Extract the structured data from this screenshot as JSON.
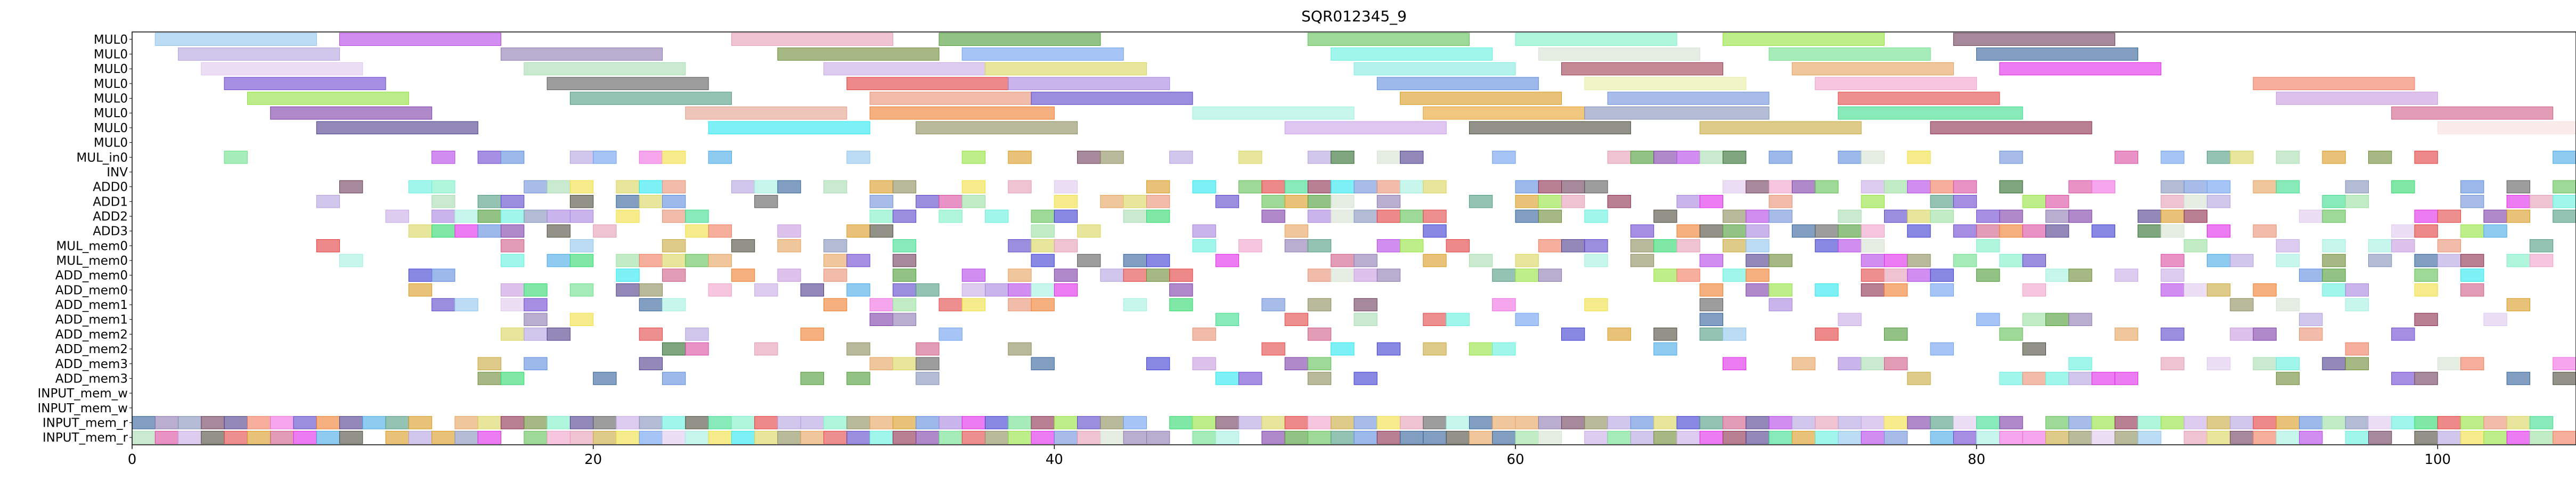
{
  "chart_data": {
    "type": "gantt",
    "title": "SQR012345_9",
    "xlim": [
      0,
      106
    ],
    "xticks": [
      0,
      20,
      40,
      60,
      80,
      100
    ],
    "rows": [
      "MUL0",
      "MUL0",
      "MUL0",
      "MUL0",
      "MUL0",
      "MUL0",
      "MUL0",
      "MUL0",
      "MUL_in0",
      "INV",
      "ADD0",
      "ADD1",
      "ADD2",
      "ADD3",
      "MUL_mem0",
      "MUL_mem0",
      "ADD_mem0",
      "ADD_mem0",
      "ADD_mem1",
      "ADD_mem1",
      "ADD_mem2",
      "ADD_mem2",
      "ADD_mem3",
      "ADD_mem3",
      "INPUT_mem_w",
      "INPUT_mem_w",
      "INPUT_mem_r",
      "INPUT_mem_r"
    ],
    "bar_height": 0.85,
    "bar_opacity": 0.6,
    "long_rows": [
      {
        "row": 0,
        "bars": [
          [
            1,
            8,
            "#8fc3ec"
          ],
          [
            9,
            16,
            "#b441e6"
          ],
          [
            26,
            33,
            "#e59bb4"
          ],
          [
            35,
            42,
            "#4a9b33"
          ],
          [
            51,
            58,
            "#5fbf54"
          ],
          [
            60,
            67,
            "#7cf0c6"
          ],
          [
            69,
            76,
            "#93e33c"
          ],
          [
            79,
            86,
            "#6b3b56"
          ]
        ]
      },
      {
        "row": 1,
        "bars": [
          [
            2,
            9,
            "#b3a0dd"
          ],
          [
            16,
            23,
            "#8a76b0"
          ],
          [
            28,
            35,
            "#6b8a33"
          ],
          [
            36,
            43,
            "#6a9ff0"
          ],
          [
            52,
            59,
            "#63f0df"
          ],
          [
            61,
            68,
            "#d6e3d0"
          ],
          [
            71,
            78,
            "#6be08a"
          ],
          [
            80,
            87,
            "#2f5f98"
          ]
        ]
      },
      {
        "row": 2,
        "bars": [
          [
            3,
            10,
            "#dfc8ef"
          ],
          [
            17,
            24,
            "#a7dcb1"
          ],
          [
            30,
            37,
            "#c6a9e6"
          ],
          [
            37,
            44,
            "#d9d45c"
          ],
          [
            53,
            60,
            "#80ebe0"
          ],
          [
            62,
            69,
            "#9b3a4c"
          ],
          [
            72,
            79,
            "#e6a05a"
          ],
          [
            81,
            88,
            "#e024e8"
          ]
        ]
      },
      {
        "row": 3,
        "bars": [
          [
            4,
            11,
            "#6a45d1"
          ],
          [
            18,
            25,
            "#5b5b5b"
          ],
          [
            31,
            38,
            "#e33b3b"
          ],
          [
            38,
            45,
            "#a782e0"
          ],
          [
            54,
            61,
            "#5b8be0"
          ],
          [
            63,
            70,
            "#e8eda0"
          ],
          [
            73,
            80,
            "#f0a0c8"
          ],
          [
            92,
            99,
            "#f07a5c"
          ]
        ]
      },
      {
        "row": 4,
        "bars": [
          [
            5,
            12,
            "#8fe03a"
          ],
          [
            19,
            26,
            "#4f9b80"
          ],
          [
            32,
            39,
            "#e89070"
          ],
          [
            39,
            46,
            "#5a42c8"
          ],
          [
            55,
            62,
            "#d99a1e"
          ],
          [
            64,
            71,
            "#6d8fd9"
          ],
          [
            74,
            81,
            "#e34444"
          ],
          [
            93,
            100,
            "#c79ae0"
          ]
        ]
      },
      {
        "row": 5,
        "bars": [
          [
            6,
            13,
            "#7b3aa8"
          ],
          [
            24,
            31,
            "#e3a08a"
          ],
          [
            32,
            40,
            "#f07c2a"
          ],
          [
            46,
            53,
            "#a0f0e0"
          ],
          [
            56,
            63,
            "#e8a02a"
          ],
          [
            63,
            71,
            "#8090b8"
          ],
          [
            74,
            82,
            "#3adc8a"
          ],
          [
            98,
            105,
            "#cf5a86"
          ]
        ]
      },
      {
        "row": 6,
        "bars": [
          [
            8,
            15,
            "#4a3a8a"
          ],
          [
            25,
            32,
            "#26e8f0"
          ],
          [
            34,
            41,
            "#8a8a5a"
          ],
          [
            50,
            57,
            "#c8a0e6"
          ],
          [
            58,
            65,
            "#4a4a3a"
          ],
          [
            68,
            75,
            "#c8a83a"
          ],
          [
            78,
            85,
            "#8a2a4a"
          ],
          [
            100,
            106,
            "#f8e0e0"
          ]
        ]
      }
    ],
    "short_rows": {
      "density": [
        0.45,
        0.0,
        0.55,
        0.45,
        0.5,
        0.5,
        0.35,
        0.4,
        0.4,
        0.3,
        0.3,
        0.25,
        0.25,
        0.22,
        0.3,
        0.3,
        0.0,
        0.0,
        0.92,
        0.92
      ],
      "first_row": 8,
      "start": [
        0,
        8,
        9,
        8,
        11,
        11,
        8,
        9,
        12,
        12,
        12,
        12,
        14,
        15,
        14,
        15,
        0,
        0,
        0,
        0
      ]
    },
    "palette": [
      "#8fc3ec",
      "#b441e6",
      "#e59bb4",
      "#4a9b33",
      "#5fbf54",
      "#7cf0c6",
      "#93e33c",
      "#6b3b56",
      "#b3a0dd",
      "#8a76b0",
      "#6b8a33",
      "#6a9ff0",
      "#63f0df",
      "#d6e3d0",
      "#6be08a",
      "#2f5f98",
      "#dfc8ef",
      "#a7dcb1",
      "#c6a9e6",
      "#d9d45c",
      "#e6a05a",
      "#e024e8",
      "#6a45d1",
      "#5b5b5b",
      "#e33b3b",
      "#a782e0",
      "#5b8be0",
      "#f0a0c8",
      "#f07a5c",
      "#4f9b80",
      "#e89070",
      "#5a42c8",
      "#d99a1e",
      "#6d8fd9",
      "#e34444",
      "#c79ae0",
      "#7b3aa8",
      "#f07c2a",
      "#a0f0e0",
      "#8090b8",
      "#3adc8a",
      "#cf5a86",
      "#4a3a8a",
      "#26e8f0",
      "#8a8a5a",
      "#4a4a3a",
      "#c8a83a",
      "#8a2a4a",
      "#2bd96a",
      "#f0e040",
      "#45a8e8",
      "#d94aa0",
      "#9ae0a0",
      "#2a6a2a",
      "#f06ae0",
      "#3a3ad0"
    ]
  }
}
